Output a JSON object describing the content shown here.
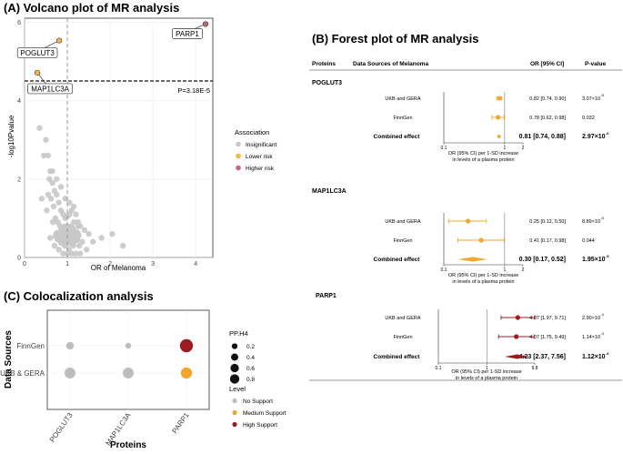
{
  "chart_data": [
    {
      "type": "scatter",
      "title": "(A) Volcano plot of MR analysis",
      "xlabel": "OR of Melanoma",
      "ylabel": "-log10Pvalue",
      "xlim": [
        0,
        4.4
      ],
      "ylim": [
        0,
        6.1
      ],
      "x_ticks": [
        "0",
        "1",
        "2",
        "3",
        "4"
      ],
      "y_ticks": [
        "0",
        "2",
        "4",
        "6"
      ],
      "vline": 1,
      "threshold": {
        "y": 4.5,
        "label": "P=3.18E-5"
      },
      "legend": {
        "title": "Association",
        "placement": "right",
        "items": [
          {
            "label": "Insignificant",
            "color": "#c8c8c8"
          },
          {
            "label": "Lower risk",
            "color": "#f2b84b"
          },
          {
            "label": "Higher risk",
            "color": "#b86d7a"
          }
        ]
      },
      "highlighted": [
        {
          "label": "PARP1",
          "x": 4.23,
          "y": 5.95,
          "color": "#b86d7a"
        },
        {
          "label": "POGLUT3",
          "x": 0.81,
          "y": 5.53,
          "color": "#f2b84b"
        },
        {
          "label": "MAP1LC3A",
          "x": 0.3,
          "y": 4.71,
          "color": "#f2b84b"
        }
      ],
      "series": [
        {
          "name": "Insignificant",
          "x": [
            0.35,
            0.5,
            0.55,
            0.6,
            0.65,
            0.7,
            0.75,
            0.8,
            0.85,
            0.9,
            0.95,
            1.0,
            1.05,
            1.1,
            1.15,
            1.2,
            1.25,
            1.3,
            1.4,
            1.5,
            1.6,
            1.8,
            2.05,
            2.3,
            0.45,
            0.58,
            0.62,
            0.68,
            0.72,
            0.78,
            0.83,
            0.88,
            0.92,
            0.97,
            1.02,
            1.08,
            1.12,
            1.18,
            1.22,
            1.35,
            0.52,
            0.66,
            0.74,
            0.86,
            0.94,
            1.04,
            1.14,
            1.28,
            1.45,
            0.4,
            0.6,
            0.7,
            0.8,
            0.9,
            1.0,
            1.1,
            1.2,
            1.3,
            0.75,
            0.85,
            0.95,
            1.05,
            0.65,
            0.55,
            1.15,
            1.25
          ],
          "y": [
            3.3,
            3.0,
            2.6,
            2.2,
            1.9,
            1.7,
            1.6,
            1.4,
            1.2,
            1.1,
            1.0,
            1.05,
            1.1,
            1.2,
            1.3,
            1.1,
            0.9,
            0.8,
            0.7,
            0.6,
            0.4,
            0.5,
            0.6,
            0.3,
            2.6,
            2.0,
            1.5,
            1.3,
            1.0,
            0.9,
            0.8,
            0.7,
            0.6,
            0.5,
            0.5,
            0.6,
            0.7,
            0.6,
            0.5,
            0.4,
            1.2,
            0.9,
            0.6,
            0.4,
            0.3,
            0.2,
            0.3,
            0.3,
            0.2,
            1.5,
            0.5,
            0.3,
            0.2,
            0.1,
            0.1,
            0.1,
            0.1,
            0.1,
            2.0,
            1.8,
            1.5,
            1.4,
            2.2,
            1.6,
            0.9,
            0.8
          ]
        }
      ]
    },
    {
      "type": "forest",
      "title": "(B) Forest plot of MR analysis",
      "headers": {
        "proteins": "Proteins",
        "sources": "Data Sources of Melanoma",
        "or": "OR [95% CI]",
        "p": "P-value"
      },
      "xlabel_line1": "OR (95% CI) per 1-SD increase",
      "xlabel_line2": "in levels of a plasma protein",
      "groups": [
        {
          "protein": "POGLUT3",
          "color": "#f0a830",
          "axis": {
            "min": 0.1,
            "max": 2,
            "ticks": [
              "0.1",
              "1",
              "2"
            ]
          },
          "rows": [
            {
              "source": "UKB and GERA",
              "or": 0.82,
              "lo": 0.74,
              "hi": 0.9,
              "or_text": "0.82 [0.74, 0.90]",
              "p": "3.07×10",
              "p_exp": "-5",
              "combined": false
            },
            {
              "source": "FinnGen",
              "or": 0.78,
              "lo": 0.62,
              "hi": 0.98,
              "or_text": "0.78 [0.62, 0.98]",
              "p": "0.032",
              "p_exp": "",
              "combined": false
            },
            {
              "source": "Combined effect",
              "or": 0.81,
              "lo": 0.74,
              "hi": 0.88,
              "or_text": "0.81 [0.74, 0.88]",
              "p": "2.97×10",
              "p_exp": "-6",
              "combined": true
            }
          ]
        },
        {
          "protein": "MAP1LC3A",
          "color": "#f0a830",
          "axis": {
            "min": 0.1,
            "max": 2,
            "ticks": [
              "0.1",
              "1",
              "2"
            ]
          },
          "rows": [
            {
              "source": "UKB and GERA",
              "or": 0.25,
              "lo": 0.12,
              "hi": 0.5,
              "or_text": "0.25 [0.12, 0.50]",
              "p": "8.89×10",
              "p_exp": "-5",
              "combined": false
            },
            {
              "source": "FinnGen",
              "or": 0.41,
              "lo": 0.17,
              "hi": 0.98,
              "or_text": "0.41 [0.17, 0.98]",
              "p": "0.044",
              "p_exp": "",
              "combined": false
            },
            {
              "source": "Combined effect",
              "or": 0.3,
              "lo": 0.17,
              "hi": 0.52,
              "or_text": "0.30 [0.17, 0.52]",
              "p": "1.95×10",
              "p_exp": "-5",
              "combined": true
            }
          ]
        },
        {
          "protein": "PARP1",
          "color": "#9b1c20",
          "axis": {
            "min": 0.1,
            "max": 9.8,
            "ticks": [
              "0.1",
              "1",
              "9.8"
            ]
          },
          "rows": [
            {
              "source": "UKB and GERA",
              "or": 4.37,
              "lo": 1.97,
              "hi": 9.71,
              "or_text": "4.37 [1.97, 9.71]",
              "p": "2.90×10",
              "p_exp": "-4",
              "combined": false
            },
            {
              "source": "FinnGen",
              "or": 4.07,
              "lo": 1.75,
              "hi": 9.49,
              "or_text": "4.07 [1.75, 9.49]",
              "p": "1.14×10",
              "p_exp": "-3",
              "combined": false
            },
            {
              "source": "Combined effect",
              "or": 4.23,
              "lo": 2.37,
              "hi": 7.56,
              "or_text": "4.23 [2.37, 7.56]",
              "p": "1.12×10",
              "p_exp": "-6",
              "combined": true
            }
          ]
        }
      ]
    },
    {
      "type": "bubble",
      "title": "(C) Colocalization analysis",
      "xlabel": "Proteins",
      "ylabel": "Data Sources",
      "categories": [
        "POGLUT3",
        "MAP1LC3A",
        "PARP1"
      ],
      "rows": [
        "FinnGen",
        "UKB & GERA"
      ],
      "size_legend": {
        "title": "PP.H4",
        "values": [
          "0.2",
          "0.4",
          "0.6",
          "0.8"
        ]
      },
      "level_legend": {
        "title": "Level",
        "items": [
          {
            "label": "No Support",
            "color": "#bdbdbd"
          },
          {
            "label": "Medium Support",
            "color": "#f2a52c"
          },
          {
            "label": "High Support",
            "color": "#9b1c20"
          }
        ]
      },
      "points": [
        {
          "protein": "POGLUT3",
          "source": "FinnGen",
          "pp": 0.2,
          "level": "No Support"
        },
        {
          "protein": "MAP1LC3A",
          "source": "FinnGen",
          "pp": 0.08,
          "level": "No Support"
        },
        {
          "protein": "PARP1",
          "source": "FinnGen",
          "pp": 0.9,
          "level": "High Support"
        },
        {
          "protein": "POGLUT3",
          "source": "UKB & GERA",
          "pp": 0.55,
          "level": "No Support"
        },
        {
          "protein": "MAP1LC3A",
          "source": "UKB & GERA",
          "pp": 0.55,
          "level": "No Support"
        },
        {
          "protein": "PARP1",
          "source": "UKB & GERA",
          "pp": 0.6,
          "level": "Medium Support"
        }
      ]
    }
  ]
}
